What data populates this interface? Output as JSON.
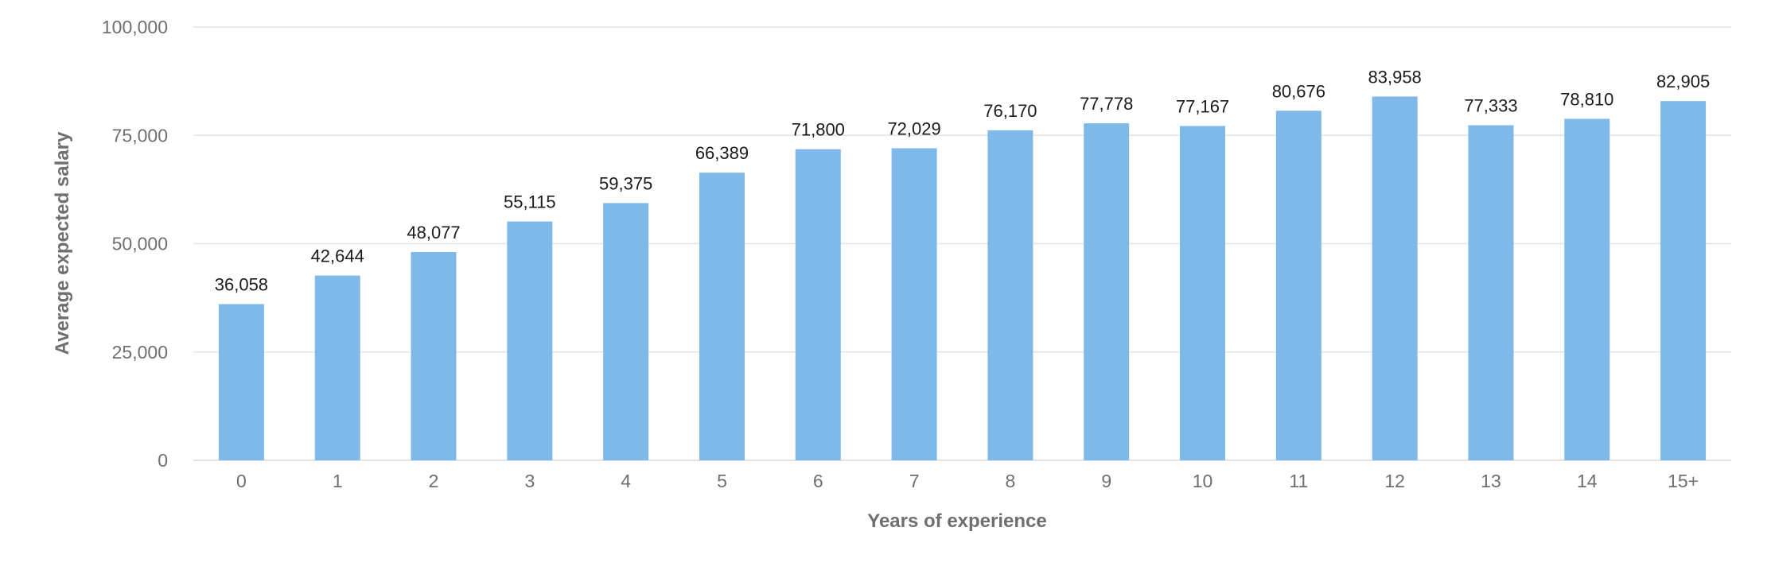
{
  "chart_data": {
    "type": "bar",
    "title": "",
    "xlabel": "Years of experience",
    "ylabel": "Average expected salary",
    "categories": [
      "0",
      "1",
      "2",
      "3",
      "4",
      "5",
      "6",
      "7",
      "8",
      "9",
      "10",
      "11",
      "12",
      "13",
      "14",
      "15+"
    ],
    "values": [
      36058,
      42644,
      48077,
      55115,
      59375,
      66389,
      71800,
      72029,
      76170,
      77778,
      77167,
      80676,
      83958,
      77333,
      78810,
      82905
    ],
    "data_labels": [
      "36,058",
      "42,644",
      "48,077",
      "55,115",
      "59,375",
      "66,389",
      "71,800",
      "72,029",
      "76,170",
      "77,778",
      "77,167",
      "80,676",
      "83,958",
      "77,333",
      "78,810",
      "82,905"
    ],
    "ylim": [
      0,
      100000
    ],
    "yticks": [
      0,
      25000,
      50000,
      75000,
      100000
    ],
    "ytick_labels": [
      "0",
      "25,000",
      "50,000",
      "75,000",
      "100,000"
    ],
    "grid": true,
    "legend": "none",
    "bar_color": "#7fb9ea"
  }
}
